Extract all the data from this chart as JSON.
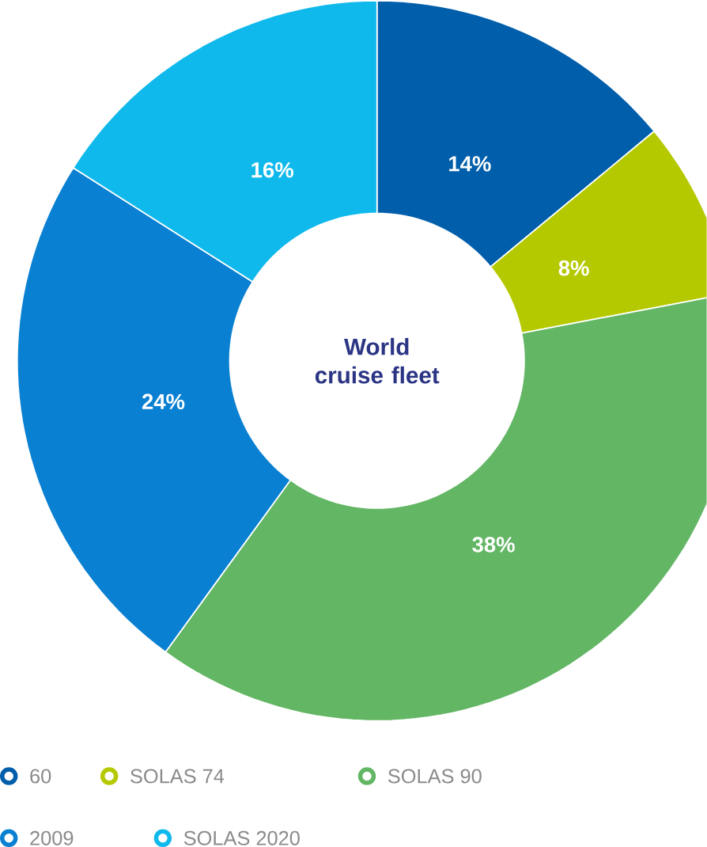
{
  "chart_data": {
    "type": "donut",
    "title": "World cruise fleet",
    "categories": [
      "60",
      "SOLAS 74",
      "SOLAS 90",
      "2009",
      "SOLAS 2020"
    ],
    "values": [
      14,
      8,
      38,
      24,
      16
    ],
    "colors": [
      "#005eaa",
      "#b5c900",
      "#62b664",
      "#0a80d2",
      "#10b9ec"
    ],
    "value_labels": [
      "14%",
      "8%",
      "38%",
      "24%",
      "16%"
    ],
    "legend": "bottom"
  }
}
